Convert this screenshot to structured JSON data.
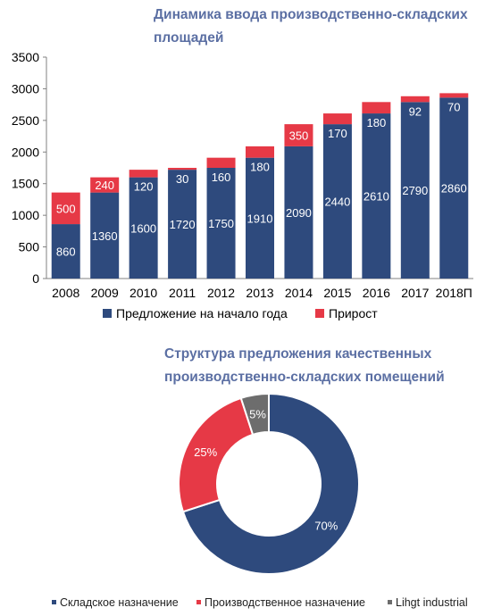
{
  "chart1": {
    "title": "Динамика ввода производственно-складских площадей",
    "chart_data": {
      "type": "bar",
      "stacked": true,
      "categories": [
        "2008",
        "2009",
        "2010",
        "2011",
        "2012",
        "2013",
        "2014",
        "2015",
        "2016",
        "2017",
        "2018П"
      ],
      "series": [
        {
          "name": "Предложение  на начало года",
          "color": "#2e4a7d",
          "values": [
            860,
            1360,
            1600,
            1720,
            1750,
            1910,
            2090,
            2440,
            2610,
            2790,
            2860
          ]
        },
        {
          "name": "Прирост",
          "color": "#e63946",
          "values": [
            500,
            240,
            120,
            30,
            160,
            180,
            350,
            170,
            180,
            92,
            70
          ]
        }
      ],
      "yticks": [
        "0",
        "500",
        "1000",
        "1500",
        "2000",
        "2500",
        "3000",
        "3500"
      ],
      "ylim": [
        0,
        3500
      ],
      "legend": "bottom",
      "grid": false
    }
  },
  "chart2": {
    "title": "Структура  предложения качественных производственно-складских помещений",
    "chart_data": {
      "type": "pie",
      "donut": true,
      "slices": [
        {
          "name": "Складское назначение",
          "label": "70%",
          "value": 70,
          "color": "#2e4a7d"
        },
        {
          "name": "Производственное  назначение",
          "label": "25%",
          "value": 25,
          "color": "#e63946"
        },
        {
          "name": "Lihgt industrial",
          "label": "5%",
          "value": 5,
          "color": "#6d6d6d"
        }
      ],
      "legend": "bottom"
    }
  }
}
